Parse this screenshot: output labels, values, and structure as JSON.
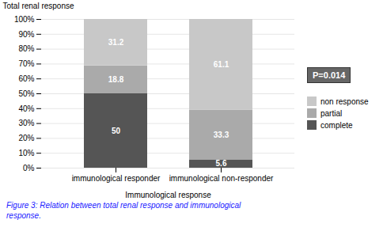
{
  "chart_data": {
    "type": "bar",
    "stacked": true,
    "categories": [
      "immunological responder",
      "immunological non-responder"
    ],
    "series": [
      {
        "name": "complete",
        "color": "#555555",
        "values": [
          50,
          5.6
        ]
      },
      {
        "name": "partial",
        "color": "#aaaaaa",
        "values": [
          18.8,
          33.3
        ]
      },
      {
        "name": "non response",
        "color": "#c8c8c8",
        "values": [
          31.2,
          61.1
        ]
      }
    ],
    "xlabel": "Immunological response",
    "ylabel": "Total renal response",
    "ylim": [
      0,
      100
    ],
    "yticks": [
      {
        "value": 0,
        "label": "0%"
      },
      {
        "value": 10,
        "label": "10%"
      },
      {
        "value": 20,
        "label": "20%"
      },
      {
        "value": 30,
        "label": "30%"
      },
      {
        "value": 40,
        "label": "40%"
      },
      {
        "value": 50,
        "label": "50%"
      },
      {
        "value": 60,
        "label": "60%"
      },
      {
        "value": 70,
        "label": "70%"
      },
      {
        "value": 80,
        "label": "80%"
      },
      {
        "value": 90,
        "label": "90%"
      },
      {
        "value": 100,
        "label": "100%"
      }
    ],
    "grid": true,
    "legend": "right",
    "data_labels": true,
    "annotation": "P=0.014",
    "caption": "Figure 3: Relation between total renal response and immunological\nresponse."
  }
}
